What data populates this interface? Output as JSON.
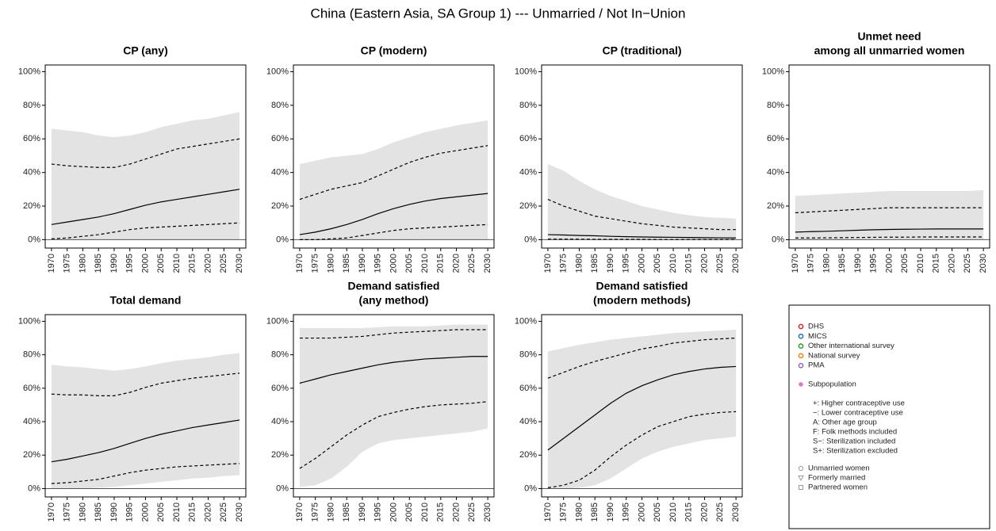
{
  "page_title": "China (Eastern Asia, SA Group 1) --- Unmarried / Not In−Union",
  "chart_data": [
    {
      "type": "line",
      "title": [
        "CP (any)"
      ],
      "x": [
        1970,
        1975,
        1980,
        1985,
        1990,
        1995,
        2000,
        2005,
        2010,
        2015,
        2020,
        2025,
        2030
      ],
      "xlim": [
        1968,
        2032
      ],
      "xticks": [
        1970,
        1975,
        1980,
        1985,
        1990,
        1995,
        2000,
        2005,
        2010,
        2015,
        2020,
        2025,
        2030
      ],
      "ylim": [
        -5,
        104
      ],
      "yticks": [
        {
          "value": 0,
          "label": "0%"
        },
        {
          "value": 20,
          "label": "20%"
        },
        {
          "value": 40,
          "label": "40%"
        },
        {
          "value": 60,
          "label": "60%"
        },
        {
          "value": 80,
          "label": "80%"
        },
        {
          "value": 100,
          "label": "100%"
        }
      ],
      "band": {
        "color": "#e3e3e3",
        "lower": [
          0,
          0,
          0,
          0,
          0,
          0,
          0,
          0,
          0,
          0,
          0,
          0,
          0
        ],
        "upper": [
          66,
          65,
          64,
          62,
          61,
          62,
          64,
          67,
          69,
          71,
          72,
          74,
          76
        ]
      },
      "series": [
        {
          "color": "#000000",
          "dashed": false,
          "values": [
            9,
            10.5,
            12,
            13.5,
            15.5,
            18,
            20.5,
            22.5,
            24,
            25.5,
            27,
            28.5,
            30
          ]
        },
        {
          "color": "#000000",
          "dashed": true,
          "values": [
            0.5,
            1,
            2,
            3,
            4.5,
            6,
            7,
            7.5,
            8,
            8.5,
            9,
            9.5,
            10
          ]
        },
        {
          "color": "#000000",
          "dashed": true,
          "values": [
            45,
            44,
            43.5,
            43,
            43,
            45,
            48,
            51,
            54,
            55.5,
            57,
            58.5,
            60
          ]
        }
      ]
    },
    {
      "type": "line",
      "title": [
        "CP (modern)"
      ],
      "x": [
        1970,
        1975,
        1980,
        1985,
        1990,
        1995,
        2000,
        2005,
        2010,
        2015,
        2020,
        2025,
        2030
      ],
      "xlim": [
        1968,
        2032
      ],
      "xticks": [
        1970,
        1975,
        1980,
        1985,
        1990,
        1995,
        2000,
        2005,
        2010,
        2015,
        2020,
        2025,
        2030
      ],
      "ylim": [
        -5,
        104
      ],
      "yticks": [
        {
          "value": 0,
          "label": "0%"
        },
        {
          "value": 20,
          "label": "20%"
        },
        {
          "value": 40,
          "label": "40%"
        },
        {
          "value": 60,
          "label": "60%"
        },
        {
          "value": 80,
          "label": "80%"
        },
        {
          "value": 100,
          "label": "100%"
        }
      ],
      "band": {
        "color": "#e3e3e3",
        "lower": [
          0,
          0,
          0,
          0,
          0,
          0,
          0,
          0,
          0,
          0,
          0,
          0,
          0
        ],
        "upper": [
          45,
          47,
          49,
          50,
          51,
          54,
          58,
          61,
          64,
          66,
          68,
          69.5,
          71
        ]
      },
      "series": [
        {
          "color": "#000000",
          "dashed": false,
          "values": [
            3,
            4.5,
            6.5,
            9,
            12,
            15.5,
            18.5,
            21,
            23,
            24.5,
            25.5,
            26.5,
            27.5
          ]
        },
        {
          "color": "#000000",
          "dashed": true,
          "values": [
            0,
            0,
            0.5,
            1,
            2.5,
            4,
            5.5,
            6.5,
            7,
            7.5,
            8,
            8.5,
            9
          ]
        },
        {
          "color": "#000000",
          "dashed": true,
          "values": [
            24,
            27,
            30,
            32,
            34,
            38,
            42,
            46,
            49,
            51.5,
            53,
            54.5,
            56
          ]
        }
      ]
    },
    {
      "type": "line",
      "title": [
        "CP (traditional)"
      ],
      "x": [
        1970,
        1975,
        1980,
        1985,
        1990,
        1995,
        2000,
        2005,
        2010,
        2015,
        2020,
        2025,
        2030
      ],
      "xlim": [
        1968,
        2032
      ],
      "xticks": [
        1970,
        1975,
        1980,
        1985,
        1990,
        1995,
        2000,
        2005,
        2010,
        2015,
        2020,
        2025,
        2030
      ],
      "ylim": [
        -5,
        104
      ],
      "yticks": [
        {
          "value": 0,
          "label": "0%"
        },
        {
          "value": 20,
          "label": "20%"
        },
        {
          "value": 40,
          "label": "40%"
        },
        {
          "value": 60,
          "label": "60%"
        },
        {
          "value": 80,
          "label": "80%"
        },
        {
          "value": 100,
          "label": "100%"
        }
      ],
      "band": {
        "color": "#e3e3e3",
        "lower": [
          0,
          0,
          0,
          0,
          0,
          0,
          0,
          0,
          0,
          0,
          0,
          0,
          0
        ],
        "upper": [
          45,
          41,
          35,
          30,
          26,
          23,
          20,
          18,
          16,
          14.5,
          13.5,
          13,
          12.5
        ]
      },
      "series": [
        {
          "color": "#000000",
          "dashed": false,
          "values": [
            3,
            2.8,
            2.5,
            2.3,
            2,
            1.8,
            1.6,
            1.5,
            1.4,
            1.3,
            1.2,
            1.1,
            1
          ]
        },
        {
          "color": "#000000",
          "dashed": true,
          "values": [
            0.3,
            0.3,
            0.3,
            0.2,
            0.2,
            0.2,
            0.2,
            0.1,
            0.1,
            0.1,
            0.1,
            0.1,
            0.1
          ]
        },
        {
          "color": "#000000",
          "dashed": true,
          "values": [
            24,
            20,
            17,
            14,
            12.5,
            11,
            9.5,
            8.5,
            7.5,
            7,
            6.5,
            6,
            6
          ]
        }
      ]
    },
    {
      "type": "line",
      "title": [
        "Unmet need",
        "among all unmarried women"
      ],
      "x": [
        1970,
        1975,
        1980,
        1985,
        1990,
        1995,
        2000,
        2005,
        2010,
        2015,
        2020,
        2025,
        2030
      ],
      "xlim": [
        1968,
        2032
      ],
      "xticks": [
        1970,
        1975,
        1980,
        1985,
        1990,
        1995,
        2000,
        2005,
        2010,
        2015,
        2020,
        2025,
        2030
      ],
      "ylim": [
        -5,
        104
      ],
      "yticks": [
        {
          "value": 0,
          "label": "0%"
        },
        {
          "value": 20,
          "label": "20%"
        },
        {
          "value": 40,
          "label": "40%"
        },
        {
          "value": 60,
          "label": "60%"
        },
        {
          "value": 80,
          "label": "80%"
        },
        {
          "value": 100,
          "label": "100%"
        }
      ],
      "band": {
        "color": "#e3e3e3",
        "lower": [
          0,
          0,
          0,
          0,
          0,
          0,
          0,
          0,
          0,
          0,
          0,
          0,
          0
        ],
        "upper": [
          26,
          26.5,
          27,
          27.5,
          28,
          28.5,
          29,
          29,
          29,
          29,
          29,
          29,
          29.5
        ]
      },
      "series": [
        {
          "color": "#000000",
          "dashed": false,
          "values": [
            4.5,
            4.8,
            5,
            5.3,
            5.6,
            5.9,
            6.1,
            6.2,
            6.3,
            6.4,
            6.4,
            6.4,
            6.4
          ]
        },
        {
          "color": "#000000",
          "dashed": true,
          "values": [
            1,
            1,
            1.1,
            1.2,
            1.3,
            1.4,
            1.5,
            1.5,
            1.6,
            1.6,
            1.6,
            1.6,
            1.6
          ]
        },
        {
          "color": "#000000",
          "dashed": true,
          "values": [
            16,
            16.5,
            17,
            17.5,
            18,
            18.5,
            19,
            19,
            19,
            19,
            19,
            19,
            19
          ]
        }
      ]
    },
    {
      "type": "line",
      "title": [
        "Total demand"
      ],
      "x": [
        1970,
        1975,
        1980,
        1985,
        1990,
        1995,
        2000,
        2005,
        2010,
        2015,
        2020,
        2025,
        2030
      ],
      "xlim": [
        1968,
        2032
      ],
      "xticks": [
        1970,
        1975,
        1980,
        1985,
        1990,
        1995,
        2000,
        2005,
        2010,
        2015,
        2020,
        2025,
        2030
      ],
      "ylim": [
        -5,
        104
      ],
      "yticks": [
        {
          "value": 0,
          "label": "0%"
        },
        {
          "value": 20,
          "label": "20%"
        },
        {
          "value": 40,
          "label": "40%"
        },
        {
          "value": 60,
          "label": "60%"
        },
        {
          "value": 80,
          "label": "80%"
        },
        {
          "value": 100,
          "label": "100%"
        }
      ],
      "band": {
        "color": "#e3e3e3",
        "lower": [
          0,
          0,
          0,
          0.5,
          1,
          2,
          3,
          4,
          5,
          6,
          6.5,
          7.5,
          8
        ],
        "upper": [
          74,
          73,
          72.5,
          71.5,
          70.5,
          71.5,
          73,
          75,
          76.5,
          77.5,
          78.5,
          80,
          81
        ]
      },
      "series": [
        {
          "color": "#000000",
          "dashed": false,
          "values": [
            16,
            17.5,
            19.5,
            21.5,
            24,
            27,
            30,
            32.5,
            34.5,
            36.5,
            38,
            39.5,
            41
          ]
        },
        {
          "color": "#000000",
          "dashed": true,
          "values": [
            3,
            3.5,
            4.5,
            5.5,
            7.5,
            9.5,
            11,
            12,
            13,
            13.5,
            14,
            14.5,
            15
          ]
        },
        {
          "color": "#000000",
          "dashed": true,
          "values": [
            56.5,
            56,
            56,
            55.5,
            55.5,
            57.5,
            60.5,
            63,
            64.5,
            66,
            67,
            68,
            69
          ]
        }
      ]
    },
    {
      "type": "line",
      "title": [
        "Demand satisfied",
        "(any method)"
      ],
      "x": [
        1970,
        1975,
        1980,
        1985,
        1990,
        1995,
        2000,
        2005,
        2010,
        2015,
        2020,
        2025,
        2030
      ],
      "xlim": [
        1968,
        2032
      ],
      "xticks": [
        1970,
        1975,
        1980,
        1985,
        1990,
        1995,
        2000,
        2005,
        2010,
        2015,
        2020,
        2025,
        2030
      ],
      "ylim": [
        -5,
        104
      ],
      "yticks": [
        {
          "value": 0,
          "label": "0%"
        },
        {
          "value": 20,
          "label": "20%"
        },
        {
          "value": 40,
          "label": "40%"
        },
        {
          "value": 60,
          "label": "60%"
        },
        {
          "value": 80,
          "label": "80%"
        },
        {
          "value": 100,
          "label": "100%"
        }
      ],
      "band": {
        "color": "#e3e3e3",
        "lower": [
          1,
          2,
          6,
          13,
          22,
          27,
          29,
          30,
          31,
          32,
          33,
          34,
          36
        ],
        "upper": [
          96,
          96,
          96,
          96,
          96,
          96.5,
          97,
          97,
          97,
          97.5,
          98,
          98,
          98
        ]
      },
      "series": [
        {
          "color": "#000000",
          "dashed": false,
          "values": [
            63,
            65.5,
            68,
            70,
            72,
            74,
            75.5,
            76.5,
            77.5,
            78,
            78.5,
            79,
            79
          ]
        },
        {
          "color": "#000000",
          "dashed": true,
          "values": [
            12,
            18,
            25,
            32,
            38,
            43,
            45.5,
            47.5,
            49,
            50,
            50.5,
            51,
            52
          ]
        },
        {
          "color": "#000000",
          "dashed": true,
          "values": [
            90,
            90,
            90,
            90.5,
            91,
            92,
            93,
            93.5,
            94,
            94.5,
            95,
            95,
            95
          ]
        }
      ]
    },
    {
      "type": "line",
      "title": [
        "Demand satisfied",
        "(modern methods)"
      ],
      "x": [
        1970,
        1975,
        1980,
        1985,
        1990,
        1995,
        2000,
        2005,
        2010,
        2015,
        2020,
        2025,
        2030
      ],
      "xlim": [
        1968,
        2032
      ],
      "xticks": [
        1970,
        1975,
        1980,
        1985,
        1990,
        1995,
        2000,
        2005,
        2010,
        2015,
        2020,
        2025,
        2030
      ],
      "ylim": [
        -5,
        104
      ],
      "yticks": [
        {
          "value": 0,
          "label": "0%"
        },
        {
          "value": 20,
          "label": "20%"
        },
        {
          "value": 40,
          "label": "40%"
        },
        {
          "value": 60,
          "label": "60%"
        },
        {
          "value": 80,
          "label": "80%"
        },
        {
          "value": 100,
          "label": "100%"
        }
      ],
      "band": {
        "color": "#e3e3e3",
        "lower": [
          0,
          0,
          0.5,
          2,
          6,
          12,
          18,
          22,
          25,
          27,
          29,
          30,
          31
        ],
        "upper": [
          82,
          84,
          86,
          87.5,
          89,
          90,
          91,
          92,
          93,
          93.5,
          94,
          94.5,
          95
        ]
      },
      "series": [
        {
          "color": "#000000",
          "dashed": false,
          "values": [
            23,
            30,
            37,
            44,
            51,
            57,
            61.5,
            65,
            68,
            70,
            71.5,
            72.5,
            73
          ]
        },
        {
          "color": "#000000",
          "dashed": true,
          "values": [
            0.5,
            2,
            5,
            11,
            19,
            26,
            32,
            37,
            40,
            43,
            44.5,
            45.5,
            46
          ]
        },
        {
          "color": "#000000",
          "dashed": true,
          "values": [
            66,
            69.5,
            73,
            76,
            78.5,
            81,
            83.5,
            85,
            87,
            88,
            89,
            89.5,
            90
          ]
        }
      ]
    }
  ],
  "legend": {
    "sources": [
      {
        "label": "DHS",
        "color": "#d62728"
      },
      {
        "label": "MICS",
        "color": "#1f77b4"
      },
      {
        "label": "Other international survey",
        "color": "#2ca02c"
      },
      {
        "label": "National survey",
        "color": "#ff7f0e"
      },
      {
        "label": "PMA",
        "color": "#9467bd"
      }
    ],
    "subpopulation": {
      "label": "Subpopulation",
      "color": "#e377c2"
    },
    "notes": [
      "+:  Higher contraceptive use",
      "−:  Lower contraceptive use",
      "A:  Other age group",
      "F:  Folk methods included",
      "S−: Sterilization included",
      "S+: Sterilization excluded"
    ],
    "shapes": [
      {
        "label": "Unmarried women",
        "shape": "circle"
      },
      {
        "label": "Formerly married",
        "shape": "triangle"
      },
      {
        "label": "Partnered women",
        "shape": "square"
      }
    ],
    "shape_color": "#999999"
  }
}
